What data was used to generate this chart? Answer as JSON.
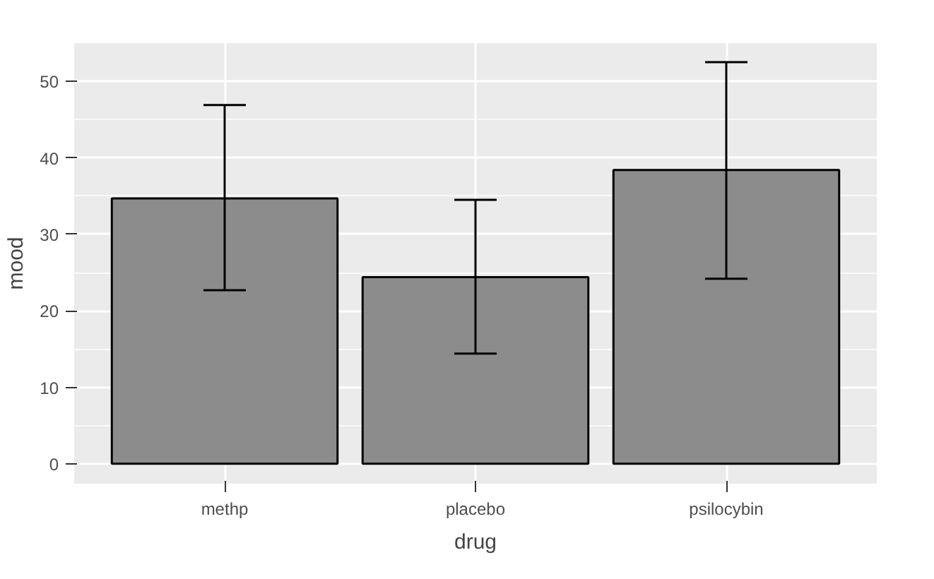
{
  "chart_data": {
    "type": "bar",
    "xlabel": "drug",
    "ylabel": "mood",
    "categories": [
      "methp",
      "placebo",
      "psilocybin"
    ],
    "values": [
      34.7,
      24.4,
      38.4
    ],
    "errors": [
      [
        22.7,
        46.9
      ],
      [
        14.4,
        34.5
      ],
      [
        24.2,
        52.5
      ]
    ],
    "color": "#8c8c8c",
    "ylim": [
      -2.6,
      55
    ],
    "yticks": [
      0,
      10,
      20,
      30,
      40,
      50
    ],
    "grid": true
  }
}
